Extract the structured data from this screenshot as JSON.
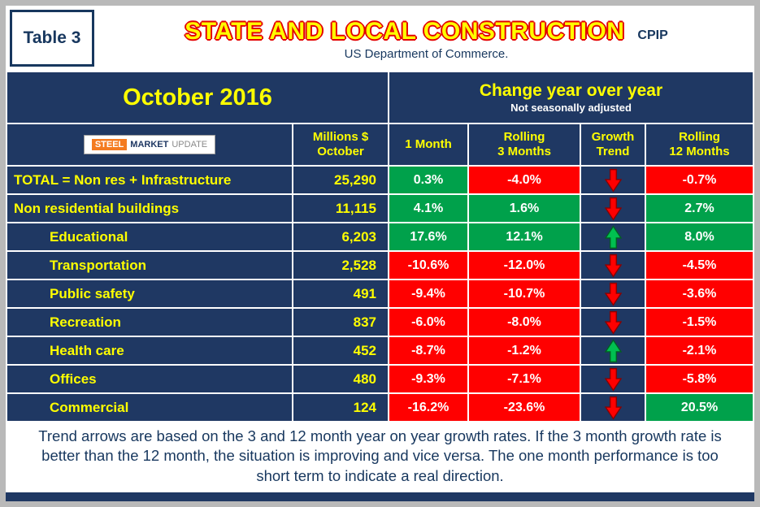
{
  "header": {
    "table_label": "Table 3",
    "title": "STATE AND LOCAL CONSTRUCTION",
    "title_suffix": "CPIP",
    "subtitle": "US Department of Commerce."
  },
  "period": {
    "month_label": "October 2016"
  },
  "change_header": {
    "title": "Change year over year",
    "subtitle": "Not seasonally adjusted"
  },
  "logo": {
    "steel": "STEEL",
    "market": "MARKET",
    "update": "UPDATE"
  },
  "columns": {
    "millions": "Millions $\nOctober",
    "one_month": "1 Month",
    "rolling_3": "Rolling\n3 Months",
    "growth_trend": "Growth\nTrend",
    "rolling_12": "Rolling\n12 Months"
  },
  "chart_data": {
    "type": "table",
    "title": "STATE AND LOCAL CONSTRUCTION (CPIP)",
    "subtitle": "US Department of Commerce.",
    "period": "October 2016",
    "columns": [
      "Millions $ October",
      "1 Month",
      "Rolling 3 Months",
      "Growth Trend",
      "Rolling 12 Months"
    ],
    "rows": [
      {
        "label": "TOTAL = Non res + Infrastructure",
        "millions": "25,290",
        "m1": "0.3%",
        "r3": "-4.0%",
        "trend": "down",
        "r12": "-0.7%"
      },
      {
        "label": "Non residential buildings",
        "millions": "11,115",
        "m1": "4.1%",
        "r3": "1.6%",
        "trend": "down",
        "r12": "2.7%"
      },
      {
        "label": "Educational",
        "millions": "6,203",
        "m1": "17.6%",
        "r3": "12.1%",
        "trend": "up",
        "r12": "8.0%"
      },
      {
        "label": "Transportation",
        "millions": "2,528",
        "m1": "-10.6%",
        "r3": "-12.0%",
        "trend": "down",
        "r12": "-4.5%"
      },
      {
        "label": "Public safety",
        "millions": "491",
        "m1": "-9.4%",
        "r3": "-10.7%",
        "trend": "down",
        "r12": "-3.6%"
      },
      {
        "label": "Recreation",
        "millions": "837",
        "m1": "-6.0%",
        "r3": "-8.0%",
        "trend": "down",
        "r12": "-1.5%"
      },
      {
        "label": "Health care",
        "millions": "452",
        "m1": "-8.7%",
        "r3": "-1.2%",
        "trend": "up",
        "r12": "-2.1%"
      },
      {
        "label": "Offices",
        "millions": "480",
        "m1": "-9.3%",
        "r3": "-7.1%",
        "trend": "down",
        "r12": "-5.8%"
      },
      {
        "label": "Commercial",
        "millions": "124",
        "m1": "-16.2%",
        "r3": "-23.6%",
        "trend": "down",
        "r12": "20.5%"
      }
    ]
  },
  "footer": {
    "text": "Trend arrows are based on the 3 and 12 month year on year growth rates. If the 3 month growth rate is better than the 12 month, the situation is improving and vice versa. The one month performance is too short term to indicate a real direction."
  },
  "colors": {
    "navy": "#1f3863",
    "yellow": "#ffff00",
    "positive": "#00a14b",
    "negative": "#ff0000",
    "arrow_down": "#ff0000",
    "arrow_down_edge": "#8b0000",
    "arrow_up": "#00c050",
    "arrow_up_edge": "#006022"
  }
}
